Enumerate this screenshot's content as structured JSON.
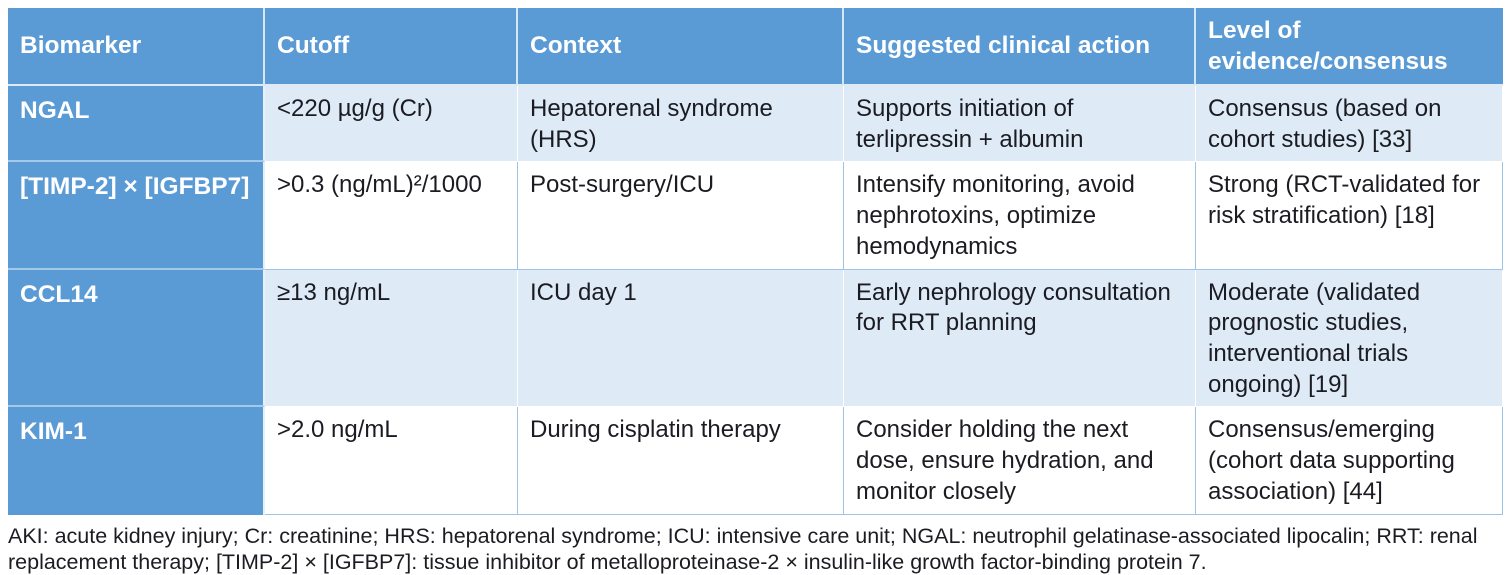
{
  "table": {
    "columns": [
      "Biomarker",
      "Cutoff",
      "Context",
      "Suggested clinical action",
      "Level of evidence/consensus"
    ],
    "rows": [
      {
        "biomarker": "NGAL",
        "cutoff": "<220 µg/g (Cr)",
        "context": "Hepatorenal syndrome (HRS)",
        "action": "Supports initiation of terlipressin + albumin",
        "evidence": "Consensus (based on cohort studies) [33]"
      },
      {
        "biomarker": "[TIMP-2] × [IGFBP7]",
        "cutoff": ">0.3 (ng/mL)²/1000",
        "context": "Post-surgery/ICU",
        "action": "Intensify monitoring, avoid nephrotoxins, optimize hemodynamics",
        "evidence": "Strong (RCT-validated for risk stratification) [18]"
      },
      {
        "biomarker": "CCL14",
        "cutoff": "≥13 ng/mL",
        "context": "ICU day 1",
        "action": "Early nephrology consultation for RRT planning",
        "evidence": "Moderate (validated prognostic studies, interventional trials ongoing) [19]"
      },
      {
        "biomarker": "KIM-1",
        "cutoff": ">2.0 ng/mL",
        "context": "During cisplatin therapy",
        "action": "Consider holding the next dose, ensure hydration, and monitor closely",
        "evidence": "Consensus/emerging (cohort data supporting association) [44]"
      }
    ]
  },
  "footnote": "AKI: acute kidney injury; Cr: creatinine; HRS: hepatorenal syndrome; ICU: intensive care unit; NGAL: neutrophil gelatinase-associated lipocalin; RRT: renal replacement therapy; [TIMP-2] × [IGFBP7]: tissue inhibitor of metalloproteinase-2 × insulin-like growth factor-binding protein 7.",
  "colors": {
    "header_bg": "#5B9BD5",
    "row_shaded_bg": "#DEEBF7",
    "row_plain_bg": "#FFFFFF",
    "grid_line": "#9DC3E6",
    "header_text": "#FFFFFF",
    "body_text": "#1B1B22"
  }
}
